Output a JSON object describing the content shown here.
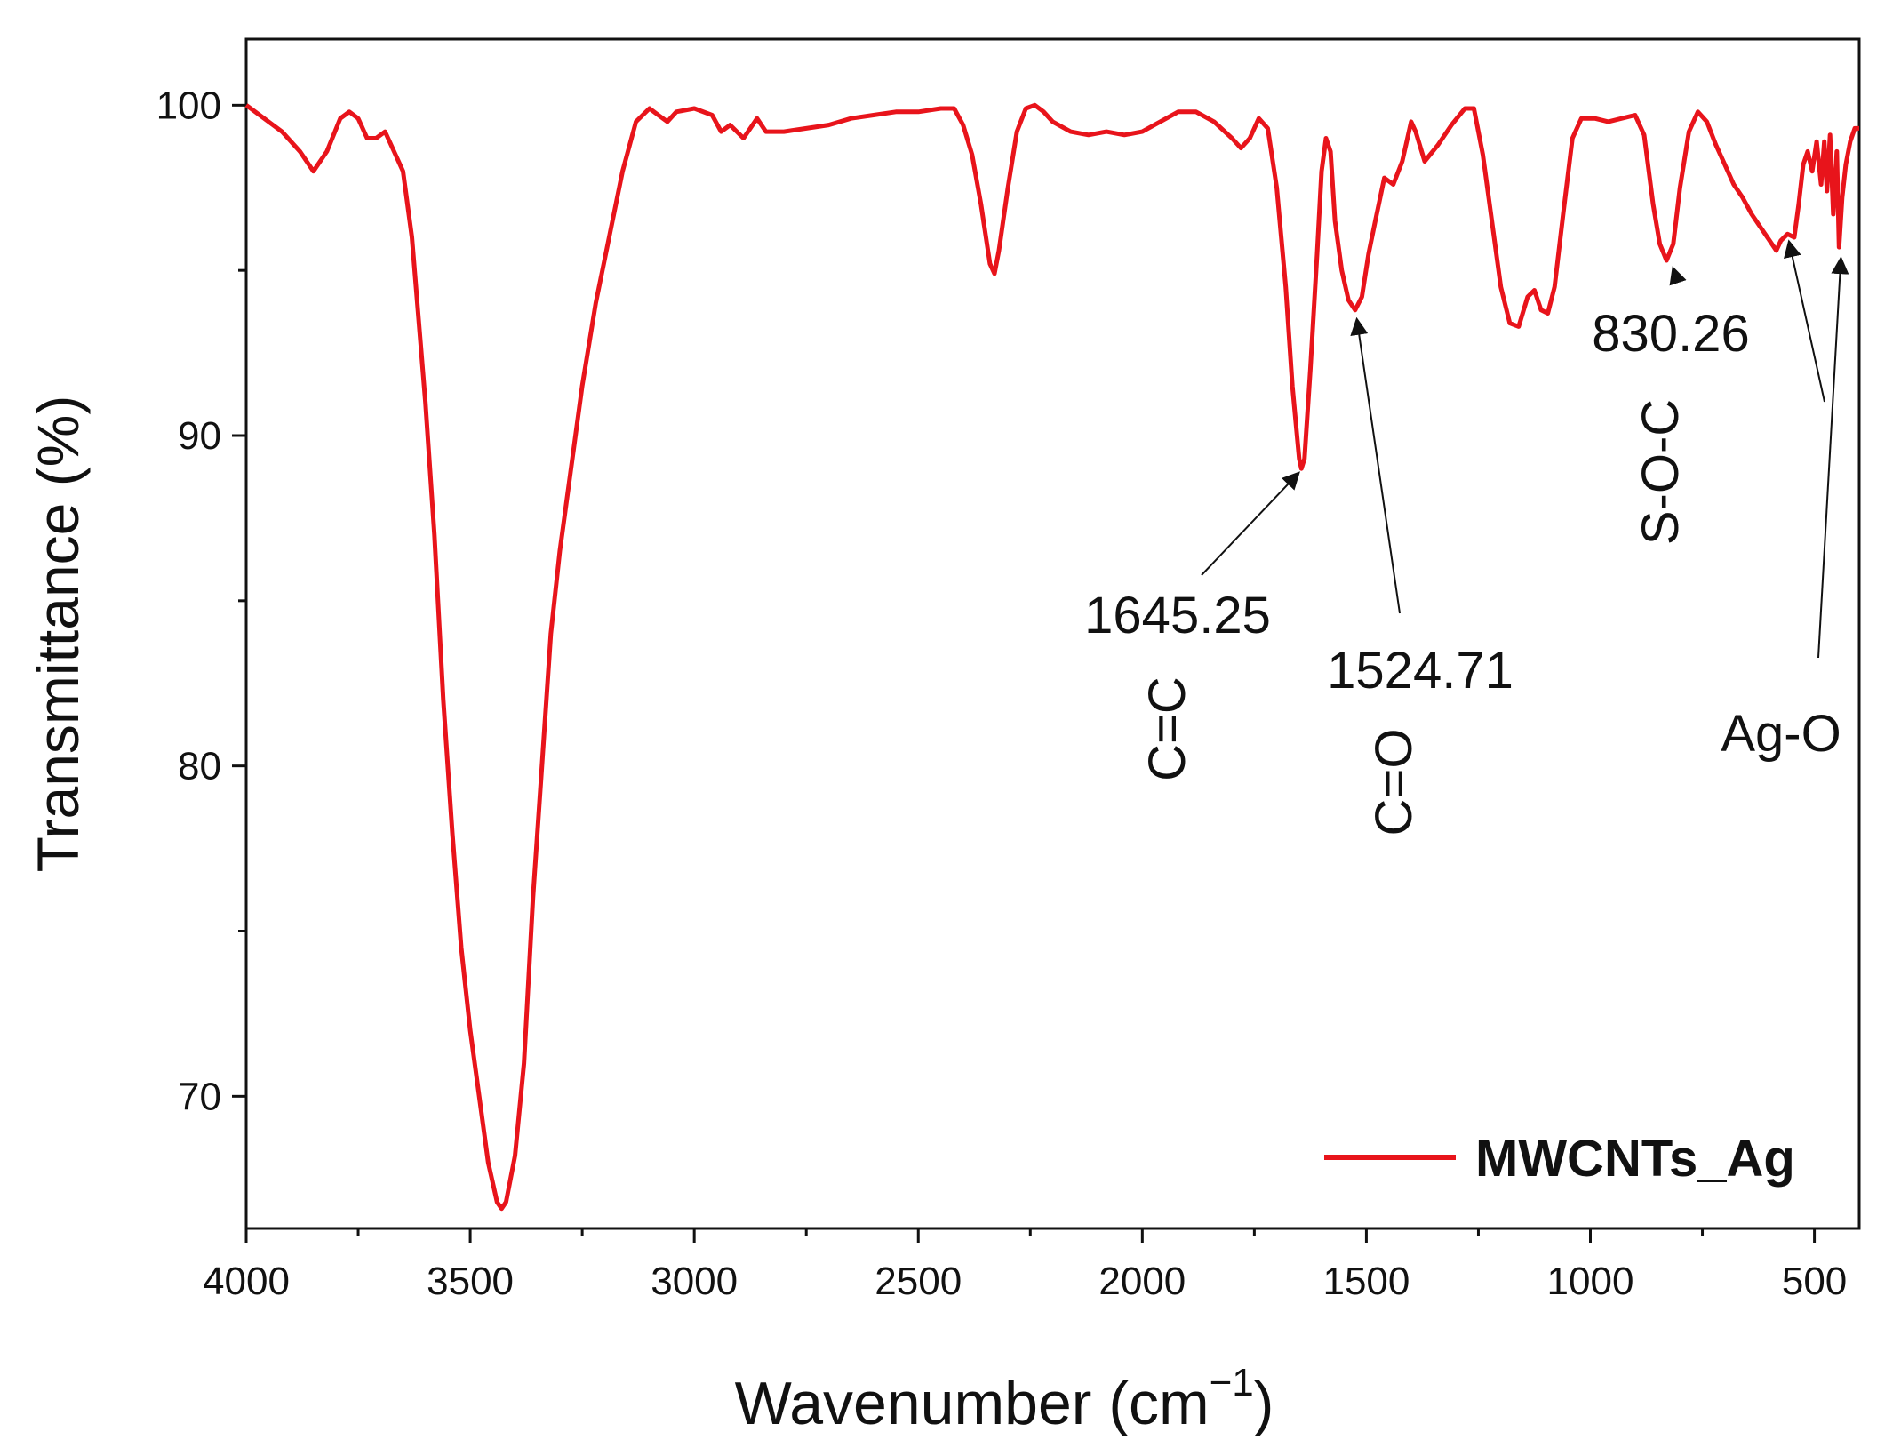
{
  "chart_data": {
    "type": "line",
    "xlabel": "Wavenumber (cm",
    "xlabel_sup": "−1",
    "xlabel_close": ")",
    "ylabel": "Transmittance (%)",
    "xlim": [
      4000,
      400
    ],
    "ylim": [
      66,
      102
    ],
    "x_reversed": true,
    "x_ticks": [
      4000,
      3500,
      3000,
      2500,
      2000,
      1500,
      1000,
      500
    ],
    "x_tick_labels": [
      "4000",
      "3500",
      "3000",
      "2500",
      "2000",
      "1500",
      "1000",
      "500"
    ],
    "y_ticks": [
      70,
      80,
      90,
      100
    ],
    "y_tick_labels": [
      "70",
      "80",
      "90",
      "100"
    ],
    "grid": false,
    "legend_position": "bottom-right",
    "series": [
      {
        "name": "MWCNTs_Ag",
        "color": "#e8141b",
        "points": [
          [
            4000,
            100.0
          ],
          [
            3960,
            99.6
          ],
          [
            3920,
            99.2
          ],
          [
            3880,
            98.6
          ],
          [
            3850,
            98.0
          ],
          [
            3820,
            98.6
          ],
          [
            3790,
            99.6
          ],
          [
            3770,
            99.8
          ],
          [
            3750,
            99.6
          ],
          [
            3730,
            99.0
          ],
          [
            3710,
            99.0
          ],
          [
            3690,
            99.2
          ],
          [
            3670,
            98.6
          ],
          [
            3650,
            98.0
          ],
          [
            3630,
            96.0
          ],
          [
            3600,
            91.0
          ],
          [
            3580,
            87.0
          ],
          [
            3560,
            82.0
          ],
          [
            3540,
            78.0
          ],
          [
            3520,
            74.5
          ],
          [
            3500,
            72.0
          ],
          [
            3480,
            70.0
          ],
          [
            3460,
            68.0
          ],
          [
            3440,
            66.8
          ],
          [
            3430,
            66.6
          ],
          [
            3420,
            66.8
          ],
          [
            3400,
            68.2
          ],
          [
            3380,
            71.0
          ],
          [
            3360,
            76.0
          ],
          [
            3340,
            80.0
          ],
          [
            3320,
            84.0
          ],
          [
            3300,
            86.5
          ],
          [
            3280,
            88.5
          ],
          [
            3250,
            91.5
          ],
          [
            3220,
            94.0
          ],
          [
            3190,
            96.0
          ],
          [
            3160,
            98.0
          ],
          [
            3130,
            99.5
          ],
          [
            3100,
            99.9
          ],
          [
            3080,
            99.7
          ],
          [
            3060,
            99.5
          ],
          [
            3040,
            99.8
          ],
          [
            3000,
            99.9
          ],
          [
            2960,
            99.7
          ],
          [
            2940,
            99.2
          ],
          [
            2920,
            99.4
          ],
          [
            2890,
            99.0
          ],
          [
            2860,
            99.6
          ],
          [
            2840,
            99.2
          ],
          [
            2800,
            99.2
          ],
          [
            2750,
            99.3
          ],
          [
            2700,
            99.4
          ],
          [
            2650,
            99.6
          ],
          [
            2600,
            99.7
          ],
          [
            2550,
            99.8
          ],
          [
            2500,
            99.8
          ],
          [
            2450,
            99.9
          ],
          [
            2420,
            99.9
          ],
          [
            2400,
            99.4
          ],
          [
            2380,
            98.5
          ],
          [
            2360,
            97.0
          ],
          [
            2340,
            95.2
          ],
          [
            2330,
            94.9
          ],
          [
            2320,
            95.6
          ],
          [
            2300,
            97.5
          ],
          [
            2280,
            99.2
          ],
          [
            2260,
            99.9
          ],
          [
            2240,
            100.0
          ],
          [
            2220,
            99.8
          ],
          [
            2200,
            99.5
          ],
          [
            2160,
            99.2
          ],
          [
            2120,
            99.1
          ],
          [
            2080,
            99.2
          ],
          [
            2040,
            99.1
          ],
          [
            2000,
            99.2
          ],
          [
            1960,
            99.5
          ],
          [
            1920,
            99.8
          ],
          [
            1880,
            99.8
          ],
          [
            1840,
            99.5
          ],
          [
            1800,
            99.0
          ],
          [
            1780,
            98.7
          ],
          [
            1760,
            99.0
          ],
          [
            1740,
            99.6
          ],
          [
            1720,
            99.3
          ],
          [
            1700,
            97.5
          ],
          [
            1680,
            94.5
          ],
          [
            1665,
            91.5
          ],
          [
            1650,
            89.3
          ],
          [
            1645,
            89.0
          ],
          [
            1638,
            89.3
          ],
          [
            1625,
            92.0
          ],
          [
            1610,
            95.5
          ],
          [
            1600,
            98.0
          ],
          [
            1590,
            99.0
          ],
          [
            1580,
            98.6
          ],
          [
            1570,
            96.5
          ],
          [
            1555,
            95.0
          ],
          [
            1540,
            94.1
          ],
          [
            1525,
            93.8
          ],
          [
            1510,
            94.2
          ],
          [
            1495,
            95.5
          ],
          [
            1480,
            96.5
          ],
          [
            1460,
            97.8
          ],
          [
            1440,
            97.6
          ],
          [
            1420,
            98.3
          ],
          [
            1400,
            99.5
          ],
          [
            1390,
            99.2
          ],
          [
            1370,
            98.3
          ],
          [
            1340,
            98.8
          ],
          [
            1310,
            99.4
          ],
          [
            1280,
            99.9
          ],
          [
            1260,
            99.9
          ],
          [
            1240,
            98.5
          ],
          [
            1220,
            96.5
          ],
          [
            1200,
            94.5
          ],
          [
            1180,
            93.4
          ],
          [
            1160,
            93.3
          ],
          [
            1140,
            94.2
          ],
          [
            1125,
            94.4
          ],
          [
            1110,
            93.8
          ],
          [
            1095,
            93.7
          ],
          [
            1080,
            94.5
          ],
          [
            1060,
            96.8
          ],
          [
            1040,
            99.0
          ],
          [
            1020,
            99.6
          ],
          [
            990,
            99.6
          ],
          [
            960,
            99.5
          ],
          [
            930,
            99.6
          ],
          [
            900,
            99.7
          ],
          [
            880,
            99.1
          ],
          [
            860,
            97.0
          ],
          [
            845,
            95.8
          ],
          [
            830,
            95.3
          ],
          [
            815,
            95.8
          ],
          [
            800,
            97.5
          ],
          [
            780,
            99.2
          ],
          [
            760,
            99.8
          ],
          [
            740,
            99.5
          ],
          [
            720,
            98.8
          ],
          [
            700,
            98.2
          ],
          [
            680,
            97.6
          ],
          [
            660,
            97.2
          ],
          [
            640,
            96.7
          ],
          [
            620,
            96.3
          ],
          [
            600,
            95.9
          ],
          [
            585,
            95.6
          ],
          [
            575,
            95.9
          ],
          [
            560,
            96.1
          ],
          [
            545,
            96.0
          ],
          [
            535,
            97.0
          ],
          [
            525,
            98.2
          ],
          [
            515,
            98.6
          ],
          [
            505,
            98.0
          ],
          [
            495,
            98.9
          ],
          [
            485,
            97.6
          ],
          [
            478,
            98.9
          ],
          [
            472,
            97.4
          ],
          [
            465,
            99.1
          ],
          [
            458,
            96.7
          ],
          [
            450,
            98.6
          ],
          [
            445,
            95.7
          ],
          [
            438,
            97.2
          ],
          [
            430,
            98.2
          ],
          [
            420,
            98.9
          ],
          [
            410,
            99.3
          ],
          [
            400,
            99.3
          ]
        ]
      }
    ],
    "annotations": [
      {
        "label": "1645.25",
        "group": "C=C",
        "x": 1645.25,
        "y": 89.0
      },
      {
        "label": "1524.71",
        "group": "C=O",
        "x": 1524.71,
        "y": 93.8
      },
      {
        "label": "830.26",
        "group": "S-O-C",
        "x": 830.26,
        "y": 95.3
      },
      {
        "label": "",
        "group": "Ag-O",
        "x": 560,
        "y": 96.1
      },
      {
        "label": "",
        "group": "Ag-O",
        "x": 445,
        "y": 95.7
      }
    ]
  }
}
